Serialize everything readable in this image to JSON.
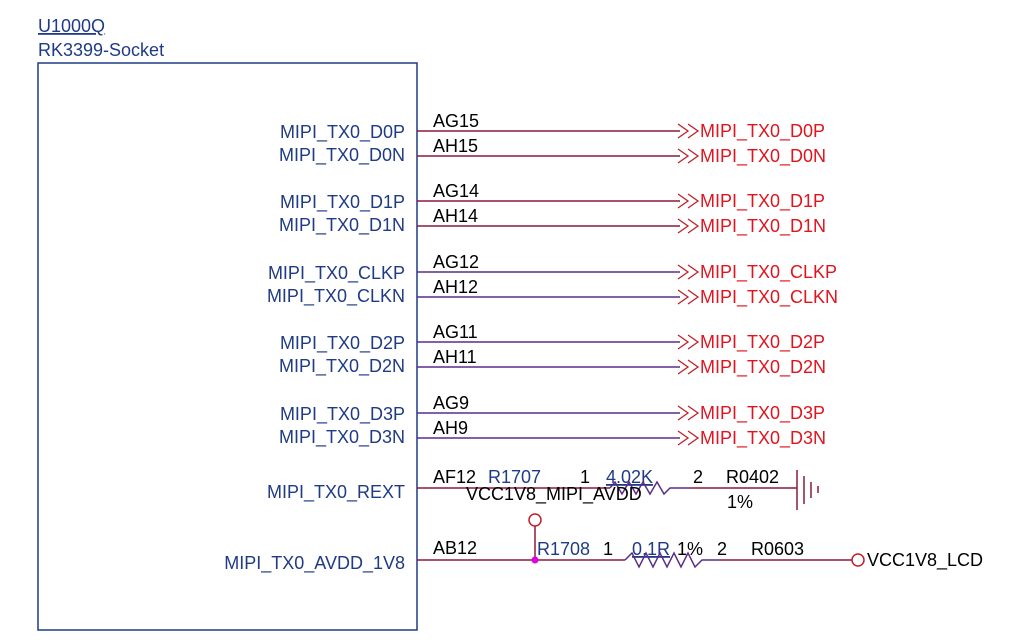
{
  "component": {
    "designator": "U1000Q",
    "part": "RK3399-Socket"
  },
  "colors": {
    "pin_label": "#1f3b86",
    "wire": "#8b1a3a",
    "wire_alt": "#5b2d8a",
    "net_label": "#e0141e",
    "junction": "#e000e0",
    "power_circle": "#c0202a"
  },
  "pins": [
    {
      "name": "MIPI_TX0_D0P",
      "ball": "AG15",
      "net": "MIPI_TX0_D0P"
    },
    {
      "name": "MIPI_TX0_D0N",
      "ball": "AH15",
      "net": "MIPI_TX0_D0N"
    },
    {
      "name": "MIPI_TX0_D1P",
      "ball": "AG14",
      "net": "MIPI_TX0_D1P"
    },
    {
      "name": "MIPI_TX0_D1N",
      "ball": "AH14",
      "net": "MIPI_TX0_D1N"
    },
    {
      "name": "MIPI_TX0_CLKP",
      "ball": "AG12",
      "net": "MIPI_TX0_CLKP"
    },
    {
      "name": "MIPI_TX0_CLKN",
      "ball": "AH12",
      "net": "MIPI_TX0_CLKN"
    },
    {
      "name": "MIPI_TX0_D2P",
      "ball": "AG11",
      "net": "MIPI_TX0_D2P"
    },
    {
      "name": "MIPI_TX0_D2N",
      "ball": "AH11",
      "net": "MIPI_TX0_D2N"
    },
    {
      "name": "MIPI_TX0_D3P",
      "ball": "AG9",
      "net": "MIPI_TX0_D3P"
    },
    {
      "name": "MIPI_TX0_D3N",
      "ball": "AH9",
      "net": "MIPI_TX0_D3N"
    },
    {
      "name": "MIPI_TX0_REXT",
      "ball": "AF12"
    },
    {
      "name": "MIPI_TX0_AVDD_1V8",
      "ball": "AB12"
    }
  ],
  "rext_resistor": {
    "designator": "R1707",
    "pin1": "1",
    "value": "4.02K",
    "pin2": "2",
    "package": "R0402",
    "tolerance": "1%"
  },
  "avdd_resistor": {
    "designator": "R1708",
    "pin1": "1",
    "value": "0.1R",
    "tolerance": "1%",
    "pin2": "2",
    "package": "R0603"
  },
  "power_nets": {
    "avdd": "VCC1V8_MIPI_AVDD",
    "lcd": "VCC1V8_LCD"
  }
}
